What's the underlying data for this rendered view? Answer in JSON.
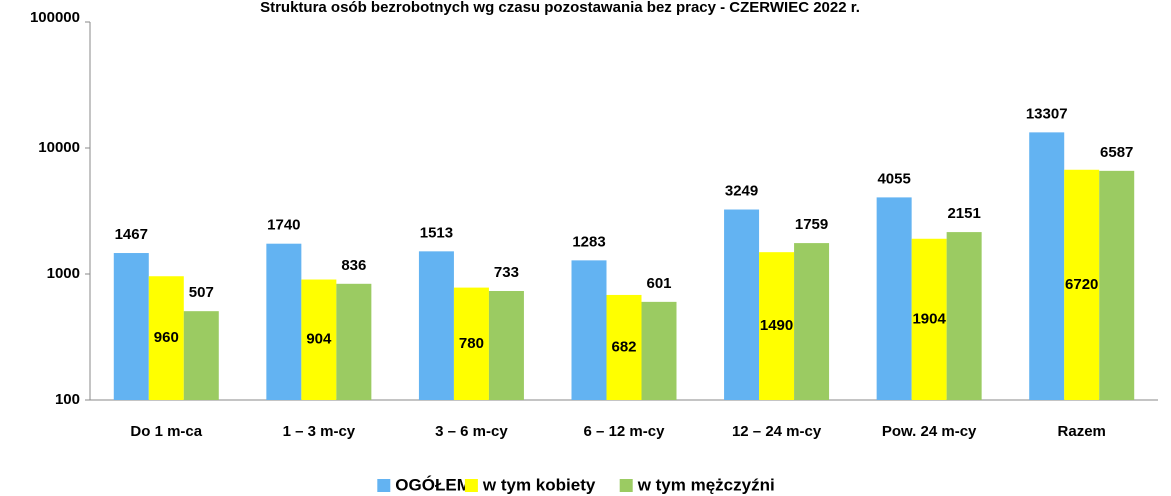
{
  "chart_data": {
    "type": "bar",
    "title": "Struktura osób bezrobotnych wg czasu pozostawania bez pracy - CZERWIEC 2022 r.",
    "categories": [
      "Do 1 m-ca",
      "1 – 3 m-cy",
      "3 – 6 m-cy",
      "6 – 12 m-cy",
      "12 – 24 m-cy",
      "Pow. 24 m-cy",
      "Razem"
    ],
    "series": [
      {
        "name": "OGÓŁEM",
        "color": "#63b3f2",
        "values": [
          1467,
          1740,
          1513,
          1283,
          3249,
          4055,
          13307
        ]
      },
      {
        "name": "w tym kobiety",
        "color": "#ffff00",
        "values": [
          960,
          904,
          780,
          682,
          1490,
          1904,
          6720
        ]
      },
      {
        "name": "w tym mężczyźni",
        "color": "#9bcb62",
        "values": [
          507,
          836,
          733,
          601,
          1759,
          2151,
          6587
        ]
      }
    ],
    "ylim": [
      100,
      100000
    ],
    "yticks": [
      100,
      1000,
      10000,
      100000
    ],
    "log_scale": true,
    "grid": false,
    "legend": "bottom"
  }
}
